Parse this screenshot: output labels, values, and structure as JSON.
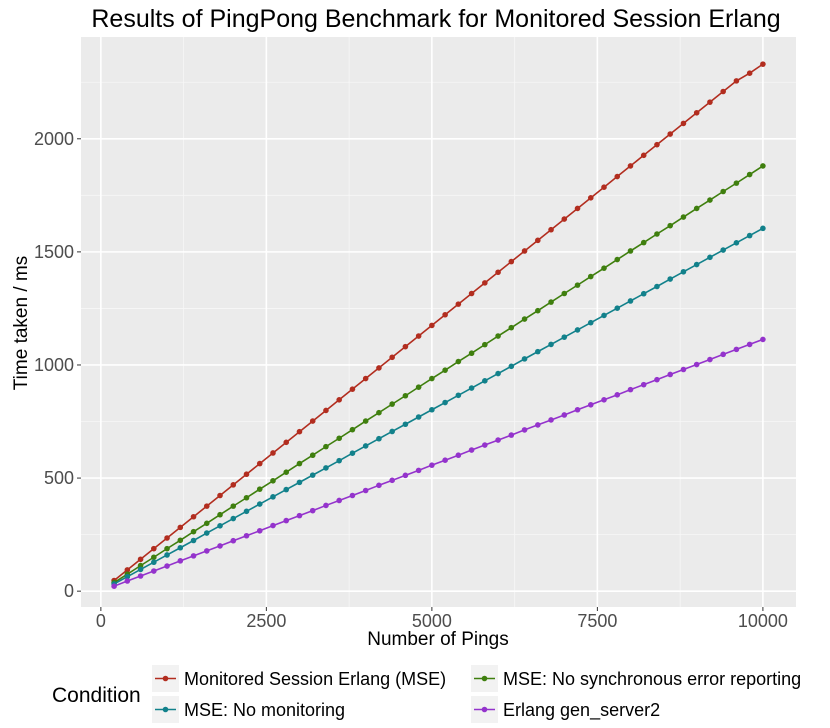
{
  "chart_data": {
    "type": "line",
    "title": "Results of PingPong Benchmark for Monitored Session Erlang",
    "xlabel": "Number of Pings",
    "ylabel": "Time taken / ms",
    "xlim": [
      -300,
      10500
    ],
    "ylim": [
      -70,
      2450
    ],
    "x_ticks": [
      0,
      2500,
      5000,
      7500,
      10000
    ],
    "y_ticks": [
      0,
      500,
      1000,
      1500,
      2000
    ],
    "x_tick_labels": [
      "0",
      "2500",
      "5000",
      "7500",
      "10000"
    ],
    "y_tick_labels": [
      "0",
      "500",
      "1000",
      "1500",
      "2000"
    ],
    "grid": true,
    "legend_title": "Condition",
    "legend_position": "bottom",
    "x": [
      200,
      400,
      600,
      800,
      1000,
      1200,
      1400,
      1600,
      1800,
      2000,
      2200,
      2400,
      2600,
      2800,
      3000,
      3200,
      3400,
      3600,
      3800,
      4000,
      4200,
      4400,
      4600,
      4800,
      5000,
      5200,
      5400,
      5600,
      5800,
      6000,
      6200,
      6400,
      6600,
      6800,
      7000,
      7200,
      7400,
      7600,
      7800,
      8000,
      8200,
      8400,
      8600,
      8800,
      9000,
      9200,
      9400,
      9600,
      9800,
      10000
    ],
    "series": [
      {
        "name": "Monitored Session Erlang (MSE)",
        "color": "#b22d1f",
        "values": [
          47,
          94,
          141,
          188,
          235,
          282,
          329,
          376,
          423,
          470,
          517,
          564,
          611,
          658,
          705,
          752,
          799,
          846,
          893,
          940,
          987,
          1034,
          1081,
          1128,
          1175,
          1222,
          1269,
          1316,
          1363,
          1410,
          1457,
          1504,
          1551,
          1598,
          1645,
          1692,
          1739,
          1786,
          1833,
          1880,
          1927,
          1974,
          2021,
          2068,
          2115,
          2162,
          2209,
          2256,
          2290,
          2330
        ]
      },
      {
        "name": "MSE: No synchronous error reporting",
        "color": "#3f7f0e",
        "values": [
          38,
          75,
          113,
          150,
          188,
          225,
          263,
          300,
          338,
          376,
          413,
          451,
          488,
          526,
          564,
          601,
          639,
          676,
          714,
          752,
          789,
          827,
          864,
          902,
          940,
          977,
          1015,
          1052,
          1090,
          1128,
          1165,
          1203,
          1240,
          1278,
          1316,
          1353,
          1391,
          1428,
          1466,
          1504,
          1541,
          1579,
          1616,
          1654,
          1692,
          1729,
          1767,
          1804,
          1842,
          1880
        ]
      },
      {
        "name": "MSE: No monitoring",
        "color": "#12818b",
        "values": [
          32,
          64,
          96,
          128,
          160,
          192,
          224,
          257,
          289,
          321,
          353,
          385,
          417,
          449,
          481,
          513,
          545,
          577,
          610,
          642,
          674,
          706,
          738,
          770,
          802,
          834,
          866,
          898,
          930,
          962,
          994,
          1027,
          1059,
          1091,
          1123,
          1155,
          1187,
          1219,
          1251,
          1283,
          1315,
          1347,
          1380,
          1412,
          1444,
          1476,
          1508,
          1540,
          1572,
          1604
        ]
      },
      {
        "name": "Erlang gen_server2",
        "color": "#9433cc",
        "values": [
          22,
          45,
          67,
          89,
          111,
          134,
          156,
          178,
          200,
          223,
          245,
          267,
          290,
          312,
          334,
          356,
          379,
          401,
          423,
          445,
          468,
          490,
          512,
          534,
          557,
          579,
          601,
          624,
          646,
          668,
          690,
          713,
          735,
          757,
          779,
          802,
          824,
          846,
          868,
          891,
          913,
          935,
          958,
          980,
          1002,
          1024,
          1047,
          1069,
          1091,
          1113
        ]
      }
    ]
  }
}
